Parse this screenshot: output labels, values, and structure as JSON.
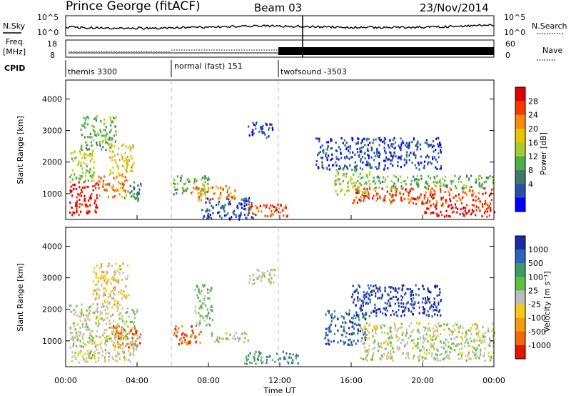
{
  "header": {
    "title": "Prince George (fitACF)",
    "beam": "Beam 03",
    "date": "23/Nov/2014"
  },
  "noise_panel": {
    "left_label": "N.Sky",
    "right_label": "N.Search",
    "y_ticks": [
      "10^5",
      "10^0"
    ]
  },
  "freq_panel": {
    "left_label_top": "Freq.",
    "left_label_bottom": "[MHz]",
    "right_label": "Nave",
    "left_ticks": [
      "18",
      "8"
    ],
    "right_ticks": [
      "60",
      "0"
    ]
  },
  "cpid": {
    "label": "CPID",
    "programs": [
      {
        "name": "themis 3300",
        "start_hour": 0.0
      },
      {
        "name": "normal (fast) 151",
        "start_hour": 6.0
      },
      {
        "name": "twofsound -3503",
        "start_hour": 12.0
      }
    ]
  },
  "power_colorbar": {
    "title": "Power [dB]",
    "ticks": [
      "28",
      "24",
      "20",
      "16",
      "12",
      "8",
      "4"
    ],
    "colors": [
      "#e00000",
      "#f53a00",
      "#f88a10",
      "#e8c400",
      "#a8cc30",
      "#4fae48",
      "#3f7a68",
      "#2a4fa8",
      "#0000ff"
    ]
  },
  "velocity_colorbar": {
    "title": "Velocity [m s⁻¹]",
    "ticks": [
      "1000",
      "500",
      "100",
      "25",
      "-25",
      "-100",
      "-500",
      "-1000"
    ],
    "colors": [
      "#1b2aa0",
      "#2d63b8",
      "#3f9a68",
      "#5fc040",
      "#bcbcbc",
      "#f4c820",
      "#f29a10",
      "#f06808",
      "#e01800"
    ]
  },
  "chart_data": {
    "type": "heatmap",
    "x_axis": {
      "label": "Time UT",
      "tick_labels": [
        "00:00",
        "04:00",
        "08:00",
        "12:00",
        "16:00",
        "20:00",
        "00:00"
      ],
      "range_hours": [
        0,
        24
      ]
    },
    "y_axis": {
      "label": "Slant Range [km]",
      "tick_labels": [
        "1000",
        "2000",
        "3000",
        "4000"
      ],
      "range_km": [
        180,
        4600
      ]
    },
    "panels": [
      {
        "name": "power",
        "regions": [
          {
            "t0": 0.2,
            "t1": 1.8,
            "r0": 350,
            "r1": 1400,
            "level": 0
          },
          {
            "t0": 0.2,
            "t1": 1.6,
            "r0": 1400,
            "r1": 2400,
            "level": 4
          },
          {
            "t0": 0.8,
            "t1": 2.8,
            "r0": 2400,
            "r1": 3500,
            "level": 5
          },
          {
            "t0": 1.8,
            "t1": 3.4,
            "r0": 900,
            "r1": 1600,
            "level": 2
          },
          {
            "t0": 2.4,
            "t1": 3.8,
            "r0": 1600,
            "r1": 2600,
            "level": 3
          },
          {
            "t0": 3.2,
            "t1": 4.2,
            "r0": 800,
            "r1": 1400,
            "level": 6
          },
          {
            "t0": 6.0,
            "t1": 8.0,
            "r0": 1000,
            "r1": 1600,
            "level": 5
          },
          {
            "t0": 7.0,
            "t1": 9.5,
            "r0": 800,
            "r1": 1300,
            "level": 2
          },
          {
            "t0": 7.6,
            "t1": 10.5,
            "r0": 200,
            "r1": 900,
            "level": 7
          },
          {
            "t0": 10.0,
            "t1": 12.5,
            "r0": 300,
            "r1": 700,
            "level": 1
          },
          {
            "t0": 10.2,
            "t1": 11.6,
            "r0": 2800,
            "r1": 3300,
            "level": 7
          },
          {
            "t0": 15.0,
            "t1": 17.0,
            "r0": 1000,
            "r1": 1800,
            "level": 4
          },
          {
            "t0": 16.0,
            "t1": 24.0,
            "r0": 700,
            "r1": 1200,
            "level": 1
          },
          {
            "t0": 17.0,
            "t1": 24.0,
            "r0": 1200,
            "r1": 1600,
            "level": 5
          },
          {
            "t0": 20.0,
            "t1": 24.0,
            "r0": 300,
            "r1": 700,
            "level": 0
          },
          {
            "t0": 14.0,
            "t1": 21.0,
            "r0": 1800,
            "r1": 2800,
            "level": 7
          }
        ]
      },
      {
        "name": "velocity",
        "regions": [
          {
            "t0": 0.2,
            "t1": 4.0,
            "r0": 350,
            "r1": 2200,
            "level": 4
          },
          {
            "t0": 1.5,
            "t1": 3.5,
            "r0": 2200,
            "r1": 3500,
            "level": 5
          },
          {
            "t0": 2.6,
            "t1": 4.2,
            "r0": 800,
            "r1": 1500,
            "level": 7
          },
          {
            "t0": 6.0,
            "t1": 7.6,
            "r0": 900,
            "r1": 1500,
            "level": 7
          },
          {
            "t0": 7.2,
            "t1": 8.2,
            "r0": 1500,
            "r1": 2800,
            "level": 3
          },
          {
            "t0": 8.0,
            "t1": 10.2,
            "r0": 1000,
            "r1": 1300,
            "level": 4
          },
          {
            "t0": 10.0,
            "t1": 13.0,
            "r0": 300,
            "r1": 700,
            "level": 2
          },
          {
            "t0": 10.2,
            "t1": 11.8,
            "r0": 2800,
            "r1": 3300,
            "level": 4
          },
          {
            "t0": 14.5,
            "t1": 16.8,
            "r0": 900,
            "r1": 2000,
            "level": 1
          },
          {
            "t0": 16.5,
            "t1": 24.0,
            "r0": 400,
            "r1": 1600,
            "level": 4
          },
          {
            "t0": 16.0,
            "t1": 21.0,
            "r0": 1800,
            "r1": 2800,
            "level": 0
          }
        ]
      }
    ]
  }
}
